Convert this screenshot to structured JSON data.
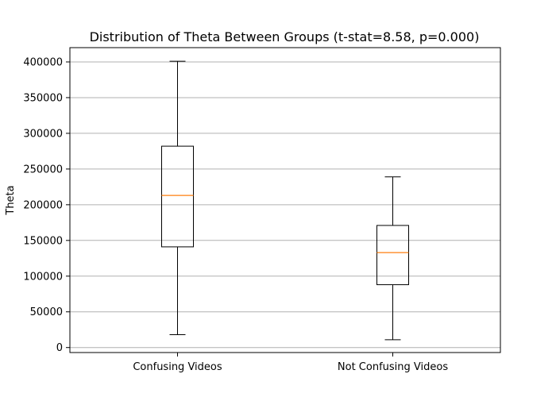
{
  "chart_data": {
    "type": "box",
    "title": "Distribution of Theta Between Groups (t-stat=8.58, p=0.000)",
    "xlabel": "",
    "ylabel": "Theta",
    "ylim": [
      -7000,
      420000
    ],
    "yticks": [
      0,
      50000,
      100000,
      150000,
      200000,
      250000,
      300000,
      350000,
      400000
    ],
    "grid": "y",
    "categories": [
      "Confusing Videos",
      "Not Confusing Videos"
    ],
    "boxes": [
      {
        "category": "Confusing Videos",
        "whisker_low": 18000,
        "q1": 141000,
        "median": 213000,
        "q3": 282000,
        "whisker_high": 401000
      },
      {
        "category": "Not Confusing Videos",
        "whisker_low": 11000,
        "q1": 88000,
        "median": 133000,
        "q3": 171000,
        "whisker_high": 239000
      }
    ],
    "colors": {
      "median": "#ff7f0e",
      "box": "#000000",
      "grid": "#b0b0b0"
    }
  }
}
